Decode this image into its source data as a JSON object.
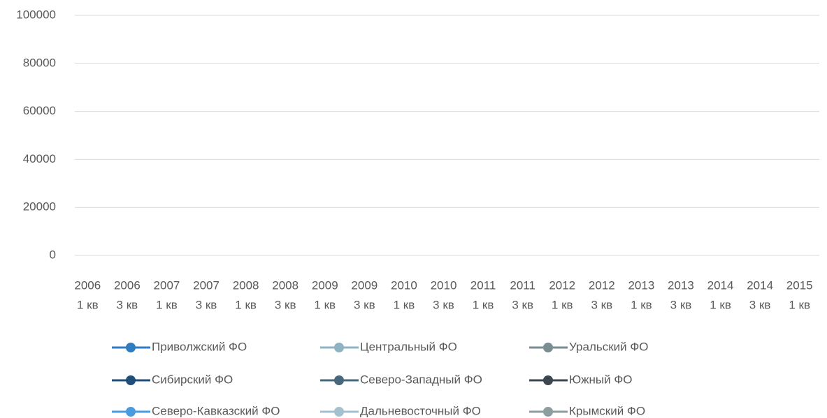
{
  "chart_data": {
    "type": "line",
    "categories": [
      [
        "2006",
        "1 кв"
      ],
      [
        "2006",
        "3 кв"
      ],
      [
        "2007",
        "1 кв"
      ],
      [
        "2007",
        "3 кв"
      ],
      [
        "2008",
        "1 кв"
      ],
      [
        "2008",
        "3 кв"
      ],
      [
        "2009",
        "1 кв"
      ],
      [
        "2009",
        "3 кв"
      ],
      [
        "2010",
        "1 кв"
      ],
      [
        "2010",
        "3 кв"
      ],
      [
        "2011",
        "1 кв"
      ],
      [
        "2011",
        "3 кв"
      ],
      [
        "2012",
        "1 кв"
      ],
      [
        "2012",
        "3 кв"
      ],
      [
        "2013",
        "1 кв"
      ],
      [
        "2013",
        "3 кв"
      ],
      [
        "2014",
        "1 кв"
      ],
      [
        "2014",
        "3 кв"
      ],
      [
        "2015",
        "1 кв"
      ]
    ],
    "series": [
      {
        "name": "Приволжский ФО",
        "color": "#2f7dc0",
        "values": [
          null,
          null,
          null,
          null,
          null,
          null,
          null,
          null,
          null,
          null,
          null,
          null,
          null,
          null,
          null,
          null,
          null,
          null,
          null
        ]
      },
      {
        "name": "Центральный ФО",
        "color": "#8fb3c3",
        "values": [
          null,
          null,
          null,
          null,
          null,
          null,
          null,
          null,
          null,
          null,
          null,
          null,
          null,
          null,
          null,
          null,
          null,
          null,
          null
        ]
      },
      {
        "name": "Уральский ФО",
        "color": "#798d92",
        "values": [
          null,
          null,
          null,
          null,
          null,
          null,
          null,
          null,
          null,
          null,
          null,
          null,
          null,
          null,
          null,
          null,
          null,
          null,
          null
        ]
      },
      {
        "name": "Сибирский ФО",
        "color": "#1f4e79",
        "values": [
          null,
          null,
          null,
          null,
          null,
          null,
          null,
          null,
          null,
          null,
          null,
          null,
          null,
          null,
          null,
          null,
          null,
          null,
          null
        ]
      },
      {
        "name": "Северо-Западный ФО",
        "color": "#46687a",
        "values": [
          null,
          null,
          null,
          null,
          null,
          null,
          null,
          null,
          null,
          null,
          null,
          null,
          null,
          null,
          null,
          null,
          null,
          null,
          null
        ]
      },
      {
        "name": "Южный ФО",
        "color": "#3b474d",
        "values": [
          null,
          null,
          null,
          null,
          null,
          null,
          null,
          null,
          null,
          null,
          null,
          null,
          null,
          null,
          null,
          null,
          null,
          null,
          null
        ]
      },
      {
        "name": "Северо-Кавказский ФО",
        "color": "#4a9ce0",
        "values": [
          null,
          null,
          null,
          null,
          null,
          null,
          null,
          null,
          null,
          null,
          null,
          null,
          null,
          null,
          null,
          null,
          null,
          null,
          null
        ]
      },
      {
        "name": "Дальневосточный ФО",
        "color": "#a3c1ce",
        "values": [
          null,
          null,
          null,
          null,
          null,
          null,
          null,
          null,
          null,
          null,
          null,
          null,
          null,
          null,
          null,
          null,
          null,
          null,
          null
        ]
      },
      {
        "name": "Крымский ФО",
        "color": "#8d9ea1",
        "values": [
          null,
          null,
          null,
          null,
          null,
          null,
          null,
          null,
          null,
          null,
          null,
          null,
          null,
          null,
          null,
          null,
          null,
          null,
          null
        ]
      }
    ],
    "ylim": [
      0,
      100000
    ],
    "yticks": [
      0,
      20000,
      40000,
      60000,
      80000,
      100000
    ],
    "grid": true,
    "legend": "bottom"
  }
}
